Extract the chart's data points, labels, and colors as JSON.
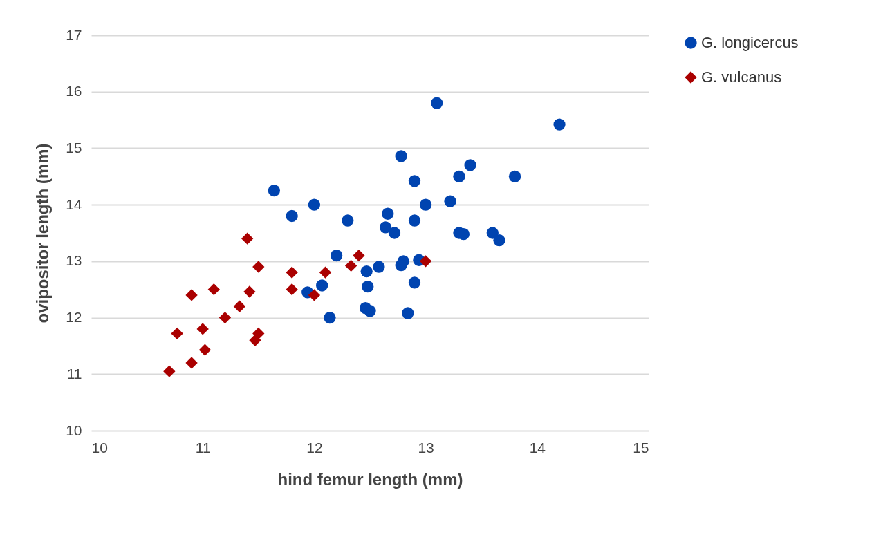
{
  "chart_data": {
    "type": "scatter",
    "xlabel": "hind femur length (mm)",
    "ylabel": "ovipositor length (mm)",
    "xlim": [
      10,
      15
    ],
    "xticks": [
      10,
      11,
      12,
      13,
      14,
      15
    ],
    "ylim": [
      10,
      17
    ],
    "yticks": [
      10,
      11,
      12,
      13,
      14,
      15,
      16,
      17
    ],
    "grid": "y",
    "legend": "right",
    "series": [
      {
        "name": "G. longicercus",
        "color": "#0044b0",
        "marker": "circle",
        "x": [
          13.1,
          14.2,
          12.78,
          13.4,
          13.3,
          13.8,
          12.9,
          11.64,
          13.22,
          12.0,
          13.0,
          11.8,
          12.66,
          12.3,
          12.9,
          12.64,
          12.72,
          13.3,
          13.34,
          13.6,
          13.66,
          12.2,
          12.94,
          12.8,
          12.78,
          12.58,
          12.47,
          12.48,
          12.9,
          11.94,
          12.07,
          12.46,
          12.5,
          12.84,
          12.14
        ],
        "values": [
          15.8,
          15.42,
          14.86,
          14.7,
          14.5,
          14.5,
          14.42,
          14.25,
          14.06,
          14.0,
          14.0,
          13.8,
          13.84,
          13.72,
          13.72,
          13.6,
          13.5,
          13.5,
          13.48,
          13.5,
          13.37,
          13.1,
          13.02,
          13.0,
          12.93,
          12.9,
          12.82,
          12.55,
          12.62,
          12.45,
          12.57,
          12.17,
          12.12,
          12.08,
          12.0
        ]
      },
      {
        "name": "G. vulcanus",
        "color": "#aa0000",
        "marker": "diamond",
        "x": [
          10.7,
          10.9,
          10.77,
          11.02,
          11.0,
          10.9,
          11.1,
          11.2,
          11.33,
          11.4,
          11.42,
          11.5,
          11.47,
          11.5,
          11.8,
          11.8,
          12.0,
          12.1,
          12.4,
          12.33,
          13.0
        ],
        "values": [
          11.05,
          11.2,
          11.72,
          11.43,
          11.8,
          12.4,
          12.5,
          12.0,
          12.2,
          13.4,
          12.46,
          12.9,
          11.6,
          11.72,
          12.8,
          12.5,
          12.4,
          12.8,
          13.1,
          12.92,
          13.0
        ]
      }
    ]
  }
}
